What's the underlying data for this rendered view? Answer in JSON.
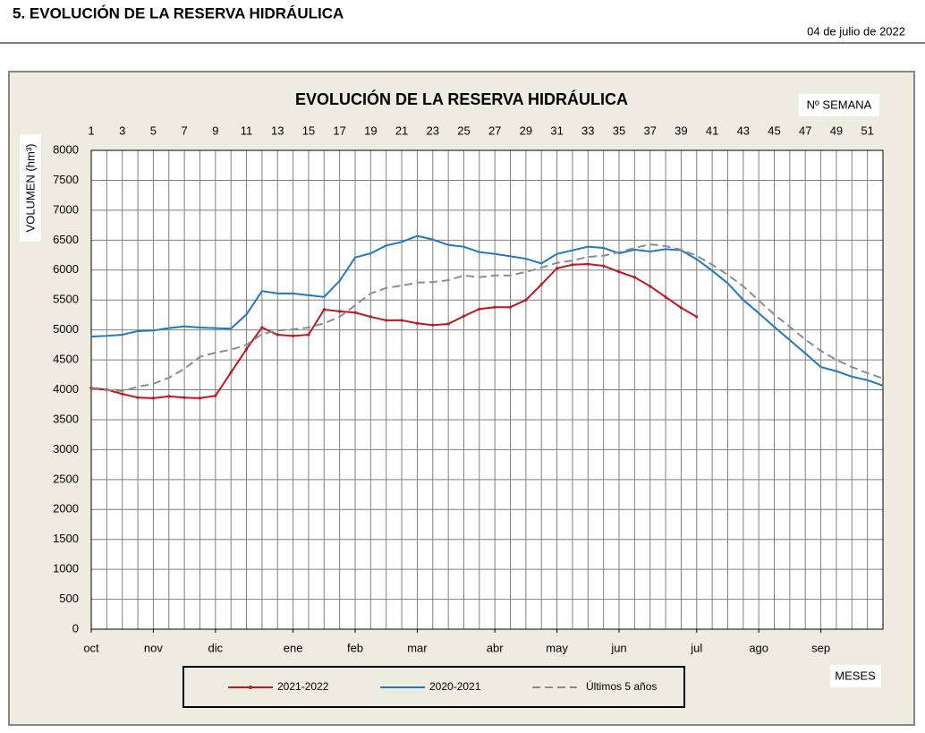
{
  "header": {
    "title": "5. EVOLUCIÓN DE LA RESERVA HIDRÁULICA",
    "date": "04  de julio de 2022"
  },
  "chart_data": {
    "type": "line",
    "title": "EVOLUCIÓN DE LA RESERVA HIDRÁULICA",
    "ylabel": "VOLUMEN (hm³)",
    "x_top_label": "Nº SEMANA",
    "x_bottom_label": "MESES",
    "x": [
      1,
      2,
      3,
      4,
      5,
      6,
      7,
      8,
      9,
      10,
      11,
      12,
      13,
      14,
      15,
      16,
      17,
      18,
      19,
      20,
      21,
      22,
      23,
      24,
      25,
      26,
      27,
      28,
      29,
      30,
      31,
      32,
      33,
      34,
      35,
      36,
      37,
      38,
      39,
      40,
      41,
      42,
      43,
      44,
      45,
      46,
      47,
      48,
      49,
      50,
      51,
      52
    ],
    "xlim": [
      1,
      52
    ],
    "xticks": [
      1,
      3,
      5,
      7,
      9,
      11,
      13,
      15,
      17,
      19,
      21,
      23,
      25,
      27,
      29,
      31,
      33,
      35,
      37,
      39,
      41,
      43,
      45,
      47,
      49,
      51
    ],
    "month_ticks": [
      {
        "value": 1,
        "label": "oct"
      },
      {
        "value": 5,
        "label": "nov"
      },
      {
        "value": 9,
        "label": "dic"
      },
      {
        "value": 14,
        "label": "ene"
      },
      {
        "value": 18,
        "label": "feb"
      },
      {
        "value": 22,
        "label": "mar"
      },
      {
        "value": 27,
        "label": "abr"
      },
      {
        "value": 31,
        "label": "may"
      },
      {
        "value": 35,
        "label": "jun"
      },
      {
        "value": 40,
        "label": "jul"
      },
      {
        "value": 44,
        "label": "ago"
      },
      {
        "value": 48,
        "label": "sep"
      }
    ],
    "ylim": [
      0,
      8000
    ],
    "yticks": [
      0,
      500,
      1000,
      1500,
      2000,
      2500,
      3000,
      3500,
      4000,
      4500,
      5000,
      5500,
      6000,
      6500,
      7000,
      7500,
      8000
    ],
    "grid": {
      "x_step": 1,
      "y": true
    },
    "series": [
      {
        "name": "2021-2022",
        "color": "#c0161c",
        "dash": false,
        "markers": true,
        "values": [
          4030,
          4000,
          3930,
          3870,
          3860,
          3890,
          3870,
          3860,
          3900,
          4290,
          4680,
          5040,
          4920,
          4900,
          4920,
          5340,
          5310,
          5290,
          5220,
          5160,
          5160,
          5110,
          5080,
          5100,
          5230,
          5350,
          5380,
          5380,
          5500,
          5760,
          6030,
          6090,
          6100,
          6070,
          5970,
          5880,
          5730,
          5550,
          5370,
          5220,
          null,
          null,
          null,
          null,
          null,
          null,
          null,
          null,
          null,
          null,
          null,
          null
        ]
      },
      {
        "name": "2020-2021",
        "color": "#1f78c0",
        "dash": false,
        "markers": false,
        "values": [
          4890,
          4900,
          4920,
          4980,
          4990,
          5030,
          5060,
          5040,
          5030,
          5020,
          5260,
          5650,
          5610,
          5610,
          5580,
          5550,
          5820,
          6210,
          6280,
          6410,
          6470,
          6570,
          6510,
          6420,
          6390,
          6300,
          6270,
          6230,
          6190,
          6110,
          6270,
          6330,
          6390,
          6370,
          6280,
          6340,
          6310,
          6350,
          6330,
          6180,
          5990,
          5780,
          5500,
          5280,
          5050,
          4830,
          4610,
          4380,
          4310,
          4220,
          4160,
          4070
        ]
      },
      {
        "name": "Últimos 5 años",
        "color": "#8c8c8c",
        "dash": true,
        "markers": false,
        "values": [
          4020,
          3990,
          3980,
          4050,
          4100,
          4200,
          4350,
          4550,
          4620,
          4670,
          4750,
          4930,
          4990,
          5010,
          5040,
          5110,
          5220,
          5410,
          5610,
          5700,
          5740,
          5790,
          5800,
          5830,
          5910,
          5880,
          5910,
          5910,
          5970,
          6040,
          6120,
          6160,
          6220,
          6240,
          6300,
          6370,
          6430,
          6400,
          6340,
          6240,
          6090,
          5920,
          5730,
          5490,
          5260,
          5050,
          4840,
          4650,
          4500,
          4380,
          4280,
          4190
        ]
      }
    ]
  }
}
